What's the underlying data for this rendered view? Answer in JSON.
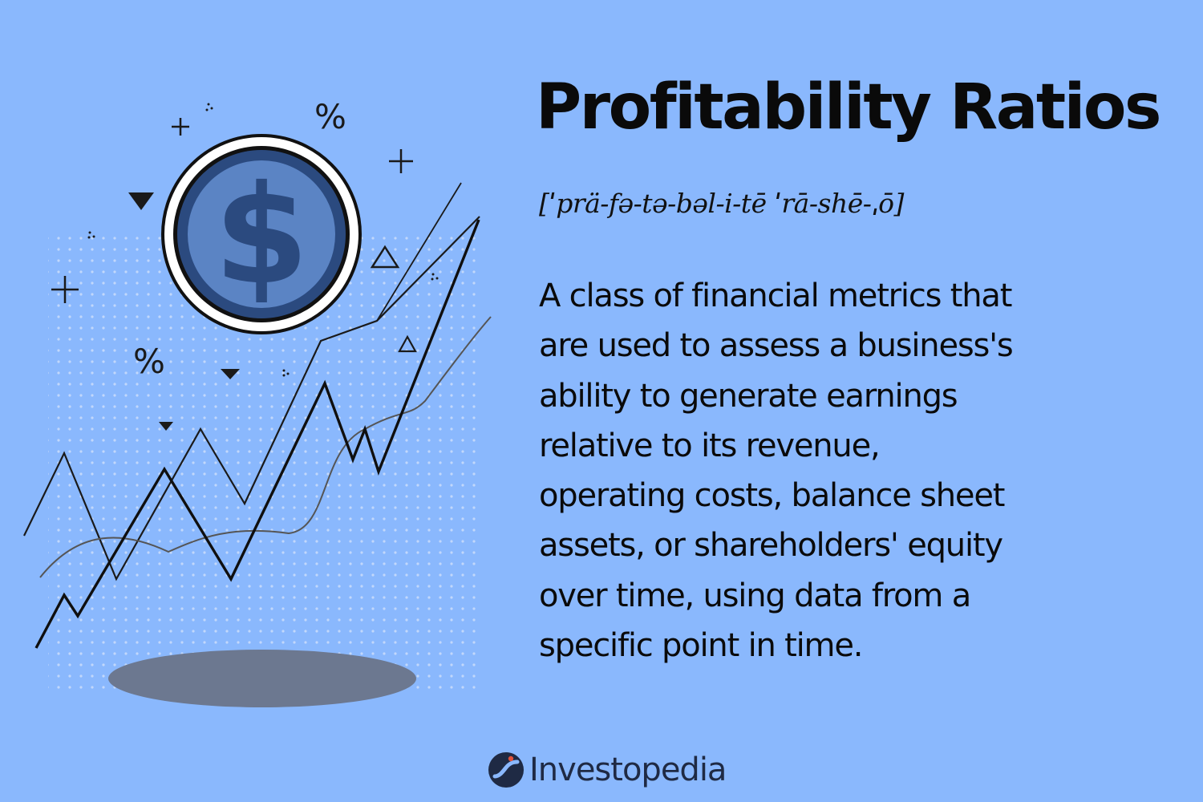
{
  "title": "Profitability Ratios",
  "pronunciation": "[ˈprä-fə-tə-bəl-i-tē ˈrā-shē-ˌō]",
  "description_lines": [
    "A class of financial metrics that",
    "are used to assess a business's",
    "ability to generate earnings",
    "relative to its revenue,",
    "operating costs, balance sheet",
    "assets, or shareholders' equity",
    "over time, using data from a",
    "specific point in time."
  ],
  "illustration": {
    "coin_symbol": "$",
    "percent_symbol": "%",
    "icons": [
      "dollar-coin-icon",
      "percent-icon",
      "plus-icon",
      "triangle-icon",
      "trend-line-icon"
    ]
  },
  "brand": {
    "name": "Investopedia",
    "icon": "investopedia-logo-icon"
  },
  "colors": {
    "background": "#8ab8fd",
    "coin_blue": "#2b4a7f",
    "coin_fill": "#5b84c4",
    "shadow": "#6b7690"
  }
}
